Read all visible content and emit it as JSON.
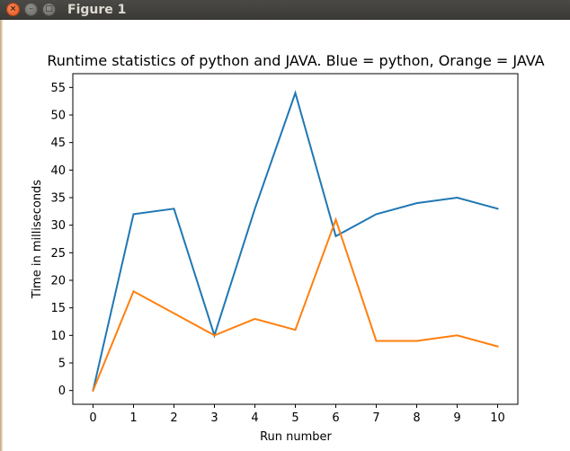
{
  "window": {
    "title": "Figure 1",
    "close_glyph": "×",
    "min_glyph": "–",
    "max_glyph": "□"
  },
  "chart_data": {
    "type": "line",
    "title": "Runtime statistics of python and JAVA. Blue = python, Orange = JAVA",
    "xlabel": "Run number",
    "ylabel": "Time in milliseconds",
    "x": [
      0,
      1,
      2,
      3,
      4,
      5,
      6,
      7,
      8,
      9,
      10
    ],
    "xlim": [
      -0.5,
      10.5
    ],
    "ylim": [
      -2.5,
      57.5
    ],
    "xticks": [
      0,
      1,
      2,
      3,
      4,
      5,
      6,
      7,
      8,
      9,
      10
    ],
    "yticks": [
      0,
      5,
      10,
      15,
      20,
      25,
      30,
      35,
      40,
      45,
      50,
      55
    ],
    "grid": false,
    "series": [
      {
        "color": "#1f77b4",
        "values": [
          0,
          32,
          33,
          10,
          33,
          54,
          28,
          32,
          34,
          35,
          33
        ]
      },
      {
        "color": "#ff7f0e",
        "values": [
          0,
          18,
          14,
          10,
          13,
          11,
          31,
          9,
          9,
          10,
          8
        ]
      }
    ]
  }
}
